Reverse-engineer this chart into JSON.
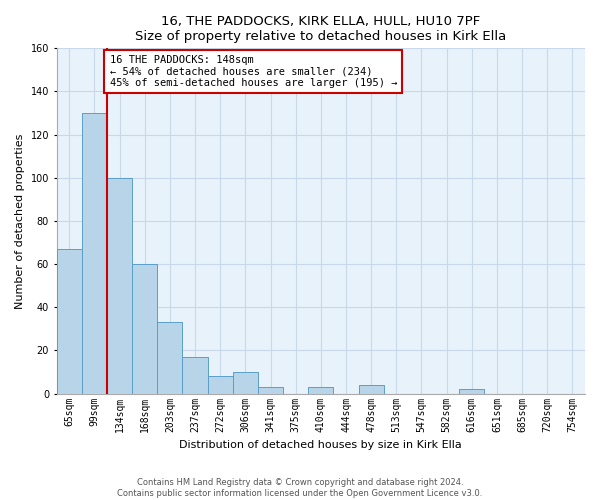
{
  "title": "16, THE PADDOCKS, KIRK ELLA, HULL, HU10 7PF",
  "subtitle": "Size of property relative to detached houses in Kirk Ella",
  "xlabel": "Distribution of detached houses by size in Kirk Ella",
  "ylabel": "Number of detached properties",
  "bin_labels": [
    "65sqm",
    "99sqm",
    "134sqm",
    "168sqm",
    "203sqm",
    "237sqm",
    "272sqm",
    "306sqm",
    "341sqm",
    "375sqm",
    "410sqm",
    "444sqm",
    "478sqm",
    "513sqm",
    "547sqm",
    "582sqm",
    "616sqm",
    "651sqm",
    "685sqm",
    "720sqm",
    "754sqm"
  ],
  "bar_values": [
    67,
    130,
    100,
    60,
    33,
    17,
    8,
    10,
    3,
    0,
    3,
    0,
    4,
    0,
    0,
    0,
    2,
    0,
    0,
    0,
    0
  ],
  "bar_color": "#b8d4e8",
  "bar_edgecolor": "#5a9ec9",
  "highlight_line_color": "#cc0000",
  "annotation_text": "16 THE PADDOCKS: 148sqm\n← 54% of detached houses are smaller (234)\n45% of semi-detached houses are larger (195) →",
  "annotation_box_edgecolor": "#cc0000",
  "annotation_box_facecolor": "#ffffff",
  "ylim": [
    0,
    160
  ],
  "yticks": [
    0,
    20,
    40,
    60,
    80,
    100,
    120,
    140,
    160
  ],
  "footer_text": "Contains HM Land Registry data © Crown copyright and database right 2024.\nContains public sector information licensed under the Open Government Licence v3.0.",
  "background_color": "#ffffff",
  "axes_facecolor": "#e8f2fa",
  "grid_color": "#c8d8e8",
  "fig_width": 6.0,
  "fig_height": 5.0,
  "title_fontsize": 9.5,
  "label_fontsize": 8,
  "tick_fontsize": 7,
  "annotation_fontsize": 7.5,
  "footer_fontsize": 6
}
